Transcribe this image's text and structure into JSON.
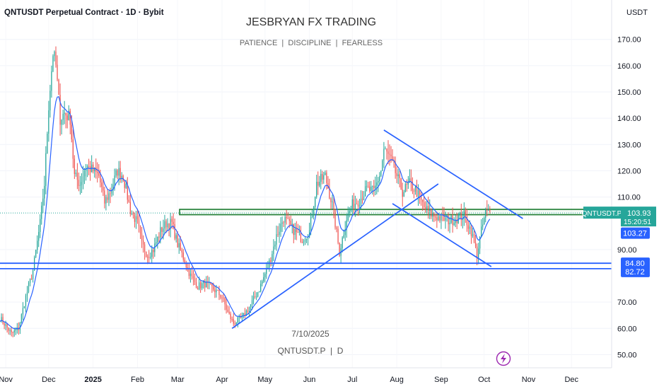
{
  "header": {
    "symbol_title": "QNTUSDT Perpetual Contract · 1D · Bybit",
    "currency": "USDT"
  },
  "watermark": {
    "title": "JESBRYAN FX TRADING",
    "subtitle": "PATIENCE  |  DISCIPLINE  |  FEARLESS",
    "date": "7/10/2025",
    "symbol": "QNTUSDT.P  |  D"
  },
  "colors": {
    "up": "#26a69a",
    "down": "#ef5350",
    "ma": "#2962ff",
    "trendline": "#2962ff",
    "zone": "#1b7a2e",
    "price_label": "#26a69a",
    "level_label": "#2962ff"
  },
  "price_tag": {
    "symbol": "QNTUSDT.P",
    "price": "103.93",
    "countdown": "15:20:51"
  },
  "level_tags": [
    "103.27",
    "84.80",
    "82.72"
  ],
  "chart_data": {
    "type": "candlestick",
    "title": "QNTUSDT Perpetual Contract · 1D · Bybit",
    "x_tick_labels": [
      "Nov",
      "Dec",
      "2025",
      "Feb",
      "Mar",
      "Apr",
      "May",
      "Jun",
      "Jul",
      "Aug",
      "Sep",
      "Oct",
      "Nov",
      "Dec"
    ],
    "y_tick_labels": [
      "170.00",
      "160.00",
      "150.00",
      "140.00",
      "130.00",
      "120.00",
      "110.00",
      "90.00",
      "70.00",
      "60.00",
      "50.00"
    ],
    "y_ticks": [
      170,
      160,
      150,
      140,
      130,
      120,
      110,
      90,
      70,
      60,
      50
    ],
    "ylim": [
      45,
      185
    ],
    "x_range": [
      "2024-10-28",
      "2025-12-29"
    ],
    "grid": true,
    "close_anchors": [
      [
        "2024-10-28",
        64
      ],
      [
        "2024-11-05",
        58
      ],
      [
        "2024-11-10",
        60
      ],
      [
        "2024-11-15",
        72
      ],
      [
        "2024-11-20",
        82
      ],
      [
        "2024-11-25",
        100
      ],
      [
        "2024-11-28",
        115
      ],
      [
        "2024-12-01",
        145
      ],
      [
        "2024-12-04",
        165
      ],
      [
        "2024-12-06",
        160
      ],
      [
        "2024-12-09",
        140
      ],
      [
        "2024-12-12",
        142
      ],
      [
        "2024-12-16",
        140
      ],
      [
        "2024-12-19",
        118
      ],
      [
        "2024-12-23",
        115
      ],
      [
        "2024-12-27",
        122
      ],
      [
        "2025-01-01",
        120
      ],
      [
        "2025-01-05",
        118
      ],
      [
        "2025-01-09",
        108
      ],
      [
        "2025-01-13",
        112
      ],
      [
        "2025-01-18",
        120
      ],
      [
        "2025-01-22",
        118
      ],
      [
        "2025-01-27",
        105
      ],
      [
        "2025-02-01",
        100
      ],
      [
        "2025-02-04",
        92
      ],
      [
        "2025-02-08",
        88
      ],
      [
        "2025-02-12",
        90
      ],
      [
        "2025-02-17",
        97
      ],
      [
        "2025-02-21",
        100
      ],
      [
        "2025-02-25",
        100
      ],
      [
        "2025-03-01",
        92
      ],
      [
        "2025-03-05",
        87
      ],
      [
        "2025-03-10",
        80
      ],
      [
        "2025-03-15",
        76
      ],
      [
        "2025-03-20",
        77
      ],
      [
        "2025-03-26",
        75
      ],
      [
        "2025-04-01",
        72
      ],
      [
        "2025-04-05",
        66
      ],
      [
        "2025-04-09",
        62
      ],
      [
        "2025-04-15",
        64
      ],
      [
        "2025-04-20",
        68
      ],
      [
        "2025-04-27",
        75
      ],
      [
        "2025-05-04",
        85
      ],
      [
        "2025-05-09",
        95
      ],
      [
        "2025-05-14",
        102
      ],
      [
        "2025-05-20",
        98
      ],
      [
        "2025-05-27",
        94
      ],
      [
        "2025-06-01",
        97
      ],
      [
        "2025-06-06",
        115
      ],
      [
        "2025-06-12",
        118
      ],
      [
        "2025-06-17",
        107
      ],
      [
        "2025-06-22",
        89
      ],
      [
        "2025-06-27",
        102
      ],
      [
        "2025-07-01",
        107
      ],
      [
        "2025-07-06",
        109
      ],
      [
        "2025-07-11",
        113
      ],
      [
        "2025-07-16",
        112
      ],
      [
        "2025-07-21",
        120
      ],
      [
        "2025-07-23",
        128
      ],
      [
        "2025-07-27",
        125
      ],
      [
        "2025-08-01",
        118
      ],
      [
        "2025-08-05",
        112
      ],
      [
        "2025-08-10",
        115
      ],
      [
        "2025-08-15",
        112
      ],
      [
        "2025-08-20",
        106
      ],
      [
        "2025-08-26",
        103
      ],
      [
        "2025-09-01",
        102
      ],
      [
        "2025-09-07",
        101
      ],
      [
        "2025-09-12",
        102
      ],
      [
        "2025-09-17",
        103
      ],
      [
        "2025-09-22",
        97
      ],
      [
        "2025-09-26",
        88
      ],
      [
        "2025-09-29",
        97
      ],
      [
        "2025-10-02",
        104
      ],
      [
        "2025-10-05",
        104
      ]
    ],
    "moving_average": "blue line smoothing the closes",
    "horizontal_levels": [
      84.8,
      82.72
    ],
    "supply_demand_zone": {
      "top": 105.3,
      "bottom": 103.27
    },
    "current_price": 103.93,
    "trendlines": [
      {
        "name": "rising-trendline",
        "from": [
          "2025-04-08",
          60.0
        ],
        "to": [
          "2025-08-30",
          115.0
        ]
      },
      {
        "name": "channel-upper",
        "from": [
          "2025-07-23",
          135.5
        ],
        "to": [
          "2025-10-28",
          101.8
        ]
      },
      {
        "name": "channel-lower",
        "from": [
          "2025-07-29",
          107.5
        ],
        "to": [
          "2025-10-06",
          83.5
        ]
      }
    ]
  }
}
